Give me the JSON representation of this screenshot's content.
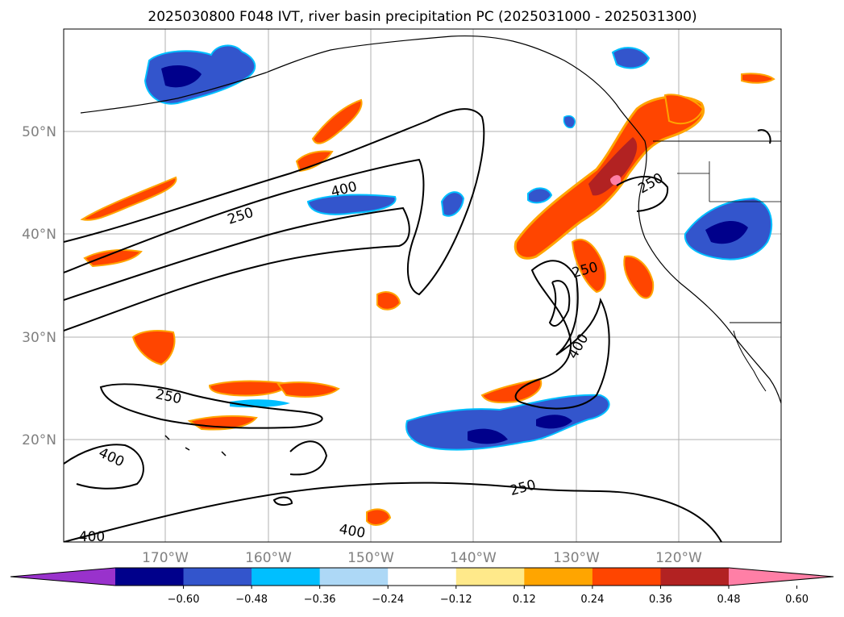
{
  "title": "2025030800 F048 IVT, river basin precipitation PC (2025031000 - 2025031300)",
  "map": {
    "lat_labels": [
      "50°N",
      "40°N",
      "30°N",
      "20°N"
    ],
    "lon_labels": [
      "170°W",
      "160°W",
      "150°W",
      "140°W",
      "130°W",
      "120°W"
    ],
    "contour_labels": [
      {
        "text": "250"
      },
      {
        "text": "400"
      },
      {
        "text": "250"
      },
      {
        "text": "250"
      },
      {
        "text": "400"
      },
      {
        "text": "250"
      },
      {
        "text": "400"
      },
      {
        "text": "250"
      },
      {
        "text": "400"
      },
      {
        "text": "400"
      }
    ]
  },
  "colorbar": {
    "colors": [
      "#9932cc",
      "#00008b",
      "#3355cc",
      "#00bfff",
      "#add8f6",
      "#ffffff",
      "#ffe98a",
      "#ffa500",
      "#ff4500",
      "#b22222",
      "#ff7fa6"
    ],
    "tick_labels": [
      "−0.60",
      "−0.48",
      "−0.36",
      "−0.24",
      "−0.12",
      "0.12",
      "0.24",
      "0.36",
      "0.48",
      "0.60"
    ]
  }
}
